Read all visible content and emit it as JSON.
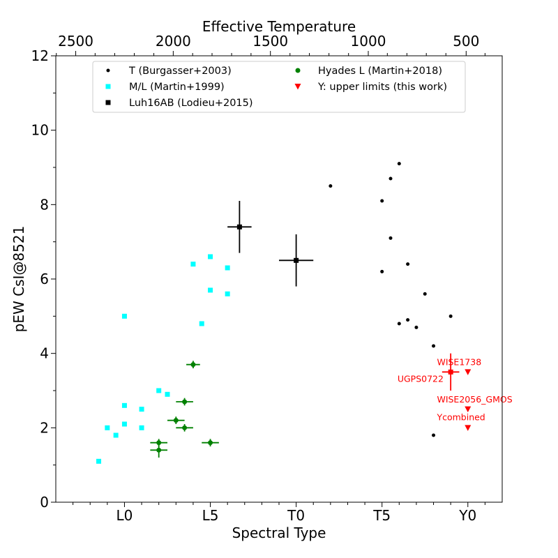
{
  "chart_data": {
    "type": "scatter",
    "xlabel": "Spectral Type",
    "ylabel": "pEW CsI@8521",
    "top_axis_label": "Effective Temperature",
    "xlim": [
      -4,
      22
    ],
    "ylim": [
      0,
      12
    ],
    "x_ticks": [
      {
        "value": 0,
        "label": "L0"
      },
      {
        "value": 5,
        "label": "L5"
      },
      {
        "value": 10,
        "label": "T0"
      },
      {
        "value": 15,
        "label": "T5"
      },
      {
        "value": 20,
        "label": "Y0"
      }
    ],
    "x_minor_ticks": [
      -3,
      -2,
      -1,
      1,
      2,
      3,
      4,
      6,
      7,
      8,
      9,
      11,
      12,
      13,
      14,
      16,
      17,
      18,
      19,
      21
    ],
    "y_ticks": [
      {
        "value": 0,
        "label": "0"
      },
      {
        "value": 2,
        "label": "2"
      },
      {
        "value": 4,
        "label": "4"
      },
      {
        "value": 6,
        "label": "6"
      },
      {
        "value": 8,
        "label": "8"
      },
      {
        "value": 10,
        "label": "10"
      },
      {
        "value": 12,
        "label": "12"
      }
    ],
    "y_minor_ticks": [
      1,
      3,
      5,
      7,
      9,
      11
    ],
    "top_ticks": [
      {
        "spt": -2.84,
        "label": "2500"
      },
      {
        "spt": 2.84,
        "label": "2000"
      },
      {
        "spt": 8.5,
        "label": "1500"
      },
      {
        "spt": 14.2,
        "label": "1000"
      },
      {
        "spt": 19.9,
        "label": "500"
      }
    ],
    "top_minor_ticks": [
      -3.97,
      -1.71,
      -0.57,
      0.57,
      1.71,
      3.97,
      5.1,
      6.24,
      7.37,
      9.64,
      10.77,
      11.91,
      13.05,
      15.31,
      16.45,
      17.58,
      18.72,
      21.0
    ],
    "series": [
      {
        "name": "T (Burgasser+2003)",
        "marker": "dot",
        "color": "#000000",
        "points": [
          [
            12,
            8.5
          ],
          [
            15,
            8.1
          ],
          [
            15.5,
            8.7
          ],
          [
            16,
            9.1
          ],
          [
            15.5,
            7.1
          ],
          [
            15,
            6.2
          ],
          [
            16.5,
            6.4
          ],
          [
            17.5,
            5.6
          ],
          [
            16,
            4.8
          ],
          [
            16.5,
            4.9
          ],
          [
            17,
            4.7
          ],
          [
            19,
            5.0
          ],
          [
            18,
            4.2
          ],
          [
            18,
            1.8
          ]
        ]
      },
      {
        "name": "M/L (Martin+1999)",
        "marker": "square",
        "color": "#00ffff",
        "points": [
          [
            -1.5,
            1.1
          ],
          [
            -1,
            2.0
          ],
          [
            -0.5,
            1.8
          ],
          [
            0,
            2.1
          ],
          [
            0,
            2.6
          ],
          [
            0,
            5.0
          ],
          [
            1,
            2.0
          ],
          [
            1,
            2.5
          ],
          [
            2,
            3.0
          ],
          [
            2.5,
            2.9
          ],
          [
            4,
            6.4
          ],
          [
            4.5,
            4.8
          ],
          [
            5,
            6.6
          ],
          [
            5,
            5.7
          ],
          [
            6,
            6.3
          ],
          [
            6,
            5.6
          ]
        ]
      },
      {
        "name": "Luh16AB (Lodieu+2015)",
        "marker": "square",
        "color": "#000000",
        "points": [
          [
            6.7,
            7.4,
            0.7,
            0.7
          ],
          [
            10,
            6.5,
            1.0,
            0.7
          ]
        ]
      },
      {
        "name": "Hyades L (Martin+2018)",
        "marker": "circle",
        "color": "#008000",
        "points": [
          [
            4,
            3.7,
            0.4,
            0.1
          ],
          [
            3.5,
            2.7,
            0.5,
            0.1
          ],
          [
            3,
            2.2,
            0.5,
            0.1
          ],
          [
            3.5,
            2.0,
            0.5,
            0.1
          ],
          [
            2,
            1.6,
            0.5,
            0.1
          ],
          [
            2,
            1.4,
            0.5,
            0.2
          ],
          [
            5,
            1.6,
            0.5,
            0.1
          ]
        ]
      },
      {
        "name": "Y: upper limits (this work)",
        "marker": "triangle-down",
        "color": "#ff0000",
        "points": [
          [
            20,
            3.5
          ],
          [
            20,
            2.5
          ],
          [
            20,
            2.0
          ]
        ]
      }
    ],
    "ugps_point": {
      "x": 19,
      "y": 3.5,
      "xerr": 0.5,
      "yerr": 0.5,
      "color": "#ff0000"
    },
    "annotations": [
      {
        "text": "WISE1738",
        "x": 18.2,
        "y": 3.68
      },
      {
        "text": "UGPS0722",
        "x": 15.9,
        "y": 3.23
      },
      {
        "text": "WISE2056_GMOS",
        "x": 18.2,
        "y": 2.68
      },
      {
        "text": "Ycombined",
        "x": 18.2,
        "y": 2.2
      }
    ],
    "legend_position": "upper-center"
  }
}
